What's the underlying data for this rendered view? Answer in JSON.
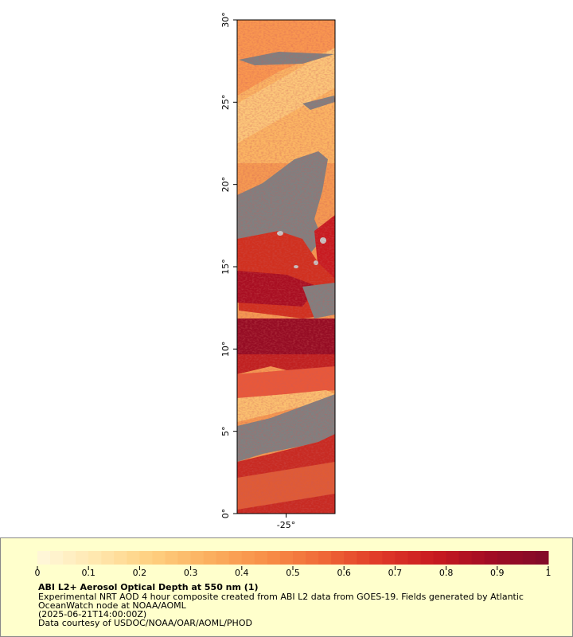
{
  "map": {
    "xlim": [
      -28,
      -22
    ],
    "ylim": [
      0,
      30
    ],
    "xticks": [
      {
        "value": -25,
        "label": "-25°"
      }
    ],
    "yticks": [
      {
        "value": 0,
        "label": "0°"
      },
      {
        "value": 5,
        "label": "5°"
      },
      {
        "value": 10,
        "label": "10°"
      },
      {
        "value": 15,
        "label": "15°"
      },
      {
        "value": 20,
        "label": "20°"
      },
      {
        "value": 25,
        "label": "25°"
      },
      {
        "value": 30,
        "label": "30°"
      }
    ]
  },
  "colorbar": {
    "range": [
      0,
      1
    ],
    "ticks": [
      0,
      0.1,
      0.2,
      0.3,
      0.4,
      0.5,
      0.6,
      0.7,
      0.8,
      0.9,
      1
    ],
    "colors": [
      "#fff8dc",
      "#ffe8b0",
      "#fed080",
      "#fbb060",
      "#f89048",
      "#f06a38",
      "#e03a28",
      "#c81a20",
      "#a00c24",
      "#800a28"
    ]
  },
  "caption": {
    "title": "ABI L2+ Aerosol Optical Depth at 550 nm (1)",
    "lines": [
      "Experimental NRT AOD 4 hour composite created from ABI L2 data from GOES-19. Fields generated by Atlantic",
      "OceanWatch node at NOAA/AOML",
      "(2025-06-21T14:00:00Z)",
      "Data courtesy of USDOC/NOAA/OAR/AOML/PHOD"
    ]
  }
}
